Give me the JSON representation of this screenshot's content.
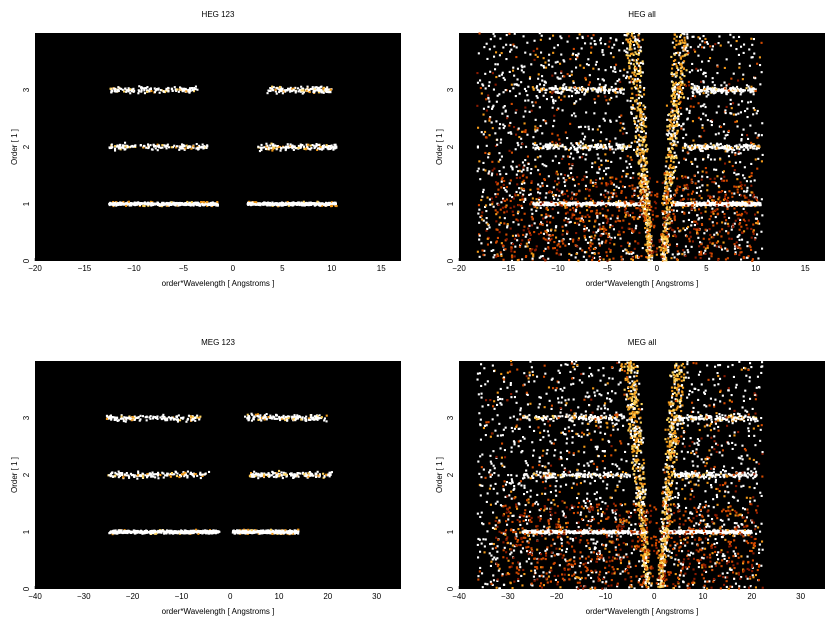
{
  "chart_data": [
    {
      "type": "heatmap",
      "title": "HEG 123",
      "xlabel": "order*Wavelength [ Angstroms ]",
      "ylabel": "Order [ 1 ]",
      "xlim": [
        -20,
        17
      ],
      "ylim": [
        0,
        4
      ],
      "xticks": [
        -20,
        -15,
        -10,
        -5,
        0,
        5,
        10,
        15
      ],
      "yticks": [
        0,
        1,
        2,
        3
      ],
      "background": "#000000",
      "colormap": [
        "#3a0600",
        "#8b1a00",
        "#d44a00",
        "#f29a1a",
        "#ffd45c",
        "#ffffff"
      ],
      "bands": [
        {
          "order": 1,
          "x_ranges": [
            [
              -12.5,
              -1.5
            ],
            [
              1.5,
              10.5
            ]
          ],
          "intensity": "high"
        },
        {
          "order": 2,
          "x_ranges": [
            [
              -12.5,
              -2.5
            ],
            [
              2.5,
              10.5
            ]
          ],
          "intensity": "low"
        },
        {
          "order": 3,
          "x_ranges": [
            [
              -12.5,
              -3.5
            ],
            [
              3.5,
              10.0
            ]
          ],
          "intensity": "low"
        }
      ],
      "fan": false
    },
    {
      "type": "heatmap",
      "title": "HEG all",
      "xlabel": "order*Wavelength [ Angstroms ]",
      "ylabel": "Order [ 1 ]",
      "xlim": [
        -20,
        17
      ],
      "ylim": [
        0,
        4
      ],
      "xticks": [
        -20,
        -15,
        -10,
        -5,
        0,
        5,
        10,
        15
      ],
      "yticks": [
        0,
        1,
        2,
        3
      ],
      "background": "#000000",
      "colormap": [
        "#3a0600",
        "#8b1a00",
        "#d44a00",
        "#f29a1a",
        "#ffd45c",
        "#ffffff"
      ],
      "bands": [
        {
          "order": 1,
          "x_ranges": [
            [
              -12.5,
              -1.5
            ],
            [
              1.5,
              10.5
            ]
          ],
          "intensity": "high"
        },
        {
          "order": 2,
          "x_ranges": [
            [
              -12.5,
              -2.5
            ],
            [
              2.5,
              10.5
            ]
          ],
          "intensity": "low"
        },
        {
          "order": 3,
          "x_ranges": [
            [
              -12.5,
              -3.5
            ],
            [
              3.5,
              10.0
            ]
          ],
          "intensity": "low"
        }
      ],
      "fan": true
    },
    {
      "type": "heatmap",
      "title": "MEG 123",
      "xlabel": "order*Wavelength [ Angstroms ]",
      "ylabel": "Order [ 1 ]",
      "xlim": [
        -40,
        35
      ],
      "ylim": [
        0,
        4
      ],
      "xticks": [
        -40,
        -30,
        -20,
        -10,
        0,
        10,
        20,
        30
      ],
      "yticks": [
        0,
        1,
        2,
        3
      ],
      "background": "#000000",
      "colormap": [
        "#3a0600",
        "#8b1a00",
        "#d44a00",
        "#f29a1a",
        "#ffd45c",
        "#ffffff"
      ],
      "bands": [
        {
          "order": 1,
          "x_ranges": [
            [
              -25,
              -2
            ],
            [
              0.5,
              14
            ]
          ],
          "intensity": "high"
        },
        {
          "order": 2,
          "x_ranges": [
            [
              -25,
              -4
            ],
            [
              4,
              21
            ]
          ],
          "intensity": "low"
        },
        {
          "order": 3,
          "x_ranges": [
            [
              -26,
              -6
            ],
            [
              3,
              20
            ]
          ],
          "intensity": "low"
        }
      ],
      "fan": false
    },
    {
      "type": "heatmap",
      "title": "MEG all",
      "xlabel": "order*Wavelength [ Angstroms ]",
      "ylabel": "Order [ 1 ]",
      "xlim": [
        -40,
        35
      ],
      "ylim": [
        0,
        4
      ],
      "xticks": [
        -40,
        -30,
        -20,
        -10,
        0,
        10,
        20,
        30
      ],
      "yticks": [
        0,
        1,
        2,
        3
      ],
      "background": "#000000",
      "colormap": [
        "#3a0600",
        "#8b1a00",
        "#d44a00",
        "#f29a1a",
        "#ffd45c",
        "#ffffff"
      ],
      "bands": [
        {
          "order": 1,
          "x_ranges": [
            [
              -27,
              -2
            ],
            [
              2,
              20
            ]
          ],
          "intensity": "high"
        },
        {
          "order": 2,
          "x_ranges": [
            [
              -27,
              -4
            ],
            [
              4,
              21
            ]
          ],
          "intensity": "low"
        },
        {
          "order": 3,
          "x_ranges": [
            [
              -27,
              -6
            ],
            [
              4,
              21
            ]
          ],
          "intensity": "low"
        }
      ],
      "fan": true
    }
  ]
}
